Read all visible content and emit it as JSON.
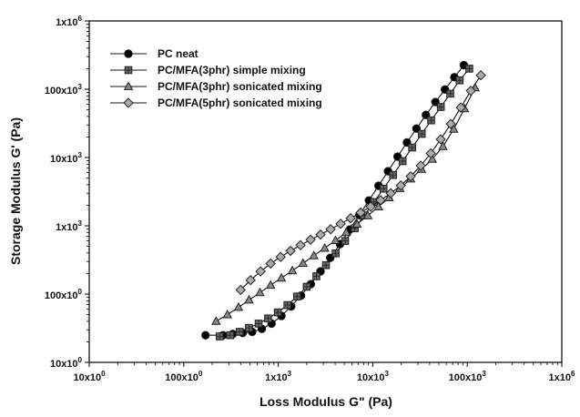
{
  "chart_data": {
    "type": "scatter",
    "xlabel": "Loss Modulus G\" (Pa)",
    "ylabel": "Storage Modulus G' (Pa)",
    "xscale": "log",
    "yscale": "log",
    "xlim": [
      10,
      1000000
    ],
    "ylim": [
      10,
      1000000
    ],
    "xticks": [
      {
        "value": 10,
        "base": "10x10",
        "exp": "0"
      },
      {
        "value": 100,
        "base": "100x10",
        "exp": "0"
      },
      {
        "value": 1000,
        "base": "1x10",
        "exp": "3"
      },
      {
        "value": 10000,
        "base": "10x10",
        "exp": "3"
      },
      {
        "value": 100000,
        "base": "100x10",
        "exp": "3"
      },
      {
        "value": 1000000,
        "base": "1x10",
        "exp": "6"
      }
    ],
    "yticks": [
      {
        "value": 10,
        "base": "10x10",
        "exp": "0"
      },
      {
        "value": 100,
        "base": "100x10",
        "exp": "0"
      },
      {
        "value": 1000,
        "base": "1x10",
        "exp": "3"
      },
      {
        "value": 10000,
        "base": "10x10",
        "exp": "3"
      },
      {
        "value": 100000,
        "base": "100x10",
        "exp": "3"
      },
      {
        "value": 1000000,
        "base": "1x10",
        "exp": "6"
      }
    ],
    "grid": false,
    "legend_position": "top-left",
    "series": [
      {
        "name": "PC neat",
        "marker": "circle",
        "color": "#000000",
        "x": [
          170,
          260,
          330,
          420,
          530,
          670,
          850,
          1080,
          1370,
          1740,
          2210,
          2800,
          3550,
          4500,
          5700,
          7200,
          9100,
          11500,
          14500,
          18300,
          23000,
          29000,
          36500,
          46000,
          58000,
          73000,
          92000
        ],
        "y": [
          25,
          25,
          26,
          27,
          28,
          31,
          37,
          48,
          66,
          95,
          140,
          215,
          340,
          540,
          880,
          1430,
          2350,
          3850,
          6300,
          10300,
          16600,
          26500,
          42000,
          65000,
          99000,
          150000,
          225000
        ]
      },
      {
        "name": "PC/MFA(3phr) simple mixing",
        "marker": "square",
        "color": "#666666",
        "x": [
          240,
          310,
          390,
          490,
          620,
          780,
          990,
          1250,
          1580,
          2000,
          2530,
          3200,
          4050,
          5100,
          6450,
          8150,
          10300,
          13000,
          16400,
          20700,
          26100,
          33000,
          41500,
          52500,
          66000,
          83000,
          105000
        ],
        "y": [
          24,
          25,
          28,
          32,
          37,
          44,
          54,
          69,
          92,
          128,
          182,
          265,
          395,
          600,
          920,
          1420,
          2230,
          3500,
          5550,
          8850,
          14000,
          22200,
          35000,
          55000,
          86000,
          135000,
          200000
        ]
      },
      {
        "name": "PC/MFA(3phr) sonicated mixing",
        "marker": "triangle",
        "color": "#888888",
        "x": [
          220,
          290,
          380,
          490,
          640,
          830,
          1080,
          1410,
          1830,
          2380,
          3100,
          4030,
          5240,
          6810,
          8860,
          11500,
          14900,
          19400,
          25200,
          32800,
          42600,
          55300,
          71900,
          93400,
          121000
        ],
        "y": [
          40,
          50,
          64,
          82,
          105,
          135,
          172,
          220,
          283,
          365,
          470,
          610,
          800,
          1060,
          1410,
          1900,
          2580,
          3530,
          4860,
          6750,
          9450,
          14500,
          26000,
          52000,
          105000
        ]
      },
      {
        "name": "PC/MFA(5phr) sonicated mixing",
        "marker": "diamond",
        "color": "#aaaaaa",
        "x": [
          400,
          510,
          650,
          830,
          1060,
          1350,
          1720,
          2200,
          2800,
          3580,
          4570,
          5830,
          7440,
          9500,
          12100,
          15500,
          19800,
          25200,
          32200,
          41100,
          52400,
          66900,
          85400,
          109000,
          139000
        ],
        "y": [
          115,
          160,
          215,
          280,
          350,
          430,
          520,
          625,
          745,
          890,
          1070,
          1290,
          1560,
          1910,
          2370,
          3000,
          3900,
          5300,
          7600,
          11500,
          18500,
          31000,
          54000,
          95000,
          160000
        ]
      }
    ]
  }
}
